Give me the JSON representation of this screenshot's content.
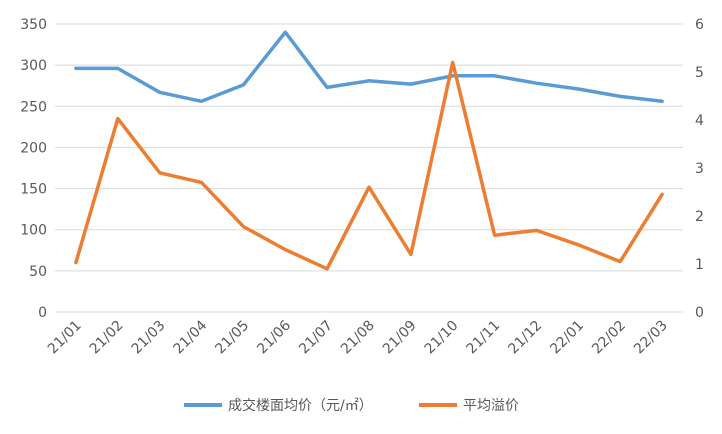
{
  "chart_data": {
    "type": "line",
    "categories": [
      "21/01",
      "21/02",
      "21/03",
      "21/04",
      "21/05",
      "21/06",
      "21/07",
      "21/08",
      "21/09",
      "21/10",
      "21/11",
      "21/12",
      "22/01",
      "22/02",
      "22/03"
    ],
    "series": [
      {
        "name": "成交楼面均价（元/㎡）",
        "axis": "left",
        "color": "#5B9BD5",
        "values": [
          296,
          296,
          267,
          256,
          276,
          340,
          273,
          281,
          277,
          287,
          287,
          278,
          271,
          262,
          256
        ]
      },
      {
        "name": "平均溢价",
        "axis": "right",
        "color": "#ED7D31",
        "values": [
          1.03,
          4.03,
          2.9,
          2.7,
          1.78,
          1.3,
          0.9,
          2.6,
          1.2,
          5.2,
          1.6,
          1.7,
          1.4,
          1.05,
          2.45
        ]
      }
    ],
    "y_left": {
      "min": 0,
      "max": 350,
      "ticks": [
        0,
        50,
        100,
        150,
        200,
        250,
        300,
        350
      ]
    },
    "y_right": {
      "min": 0,
      "max": 6,
      "ticks": [
        0,
        1,
        2,
        3,
        4,
        5,
        6
      ]
    },
    "grid": true,
    "legend_position": "bottom"
  }
}
